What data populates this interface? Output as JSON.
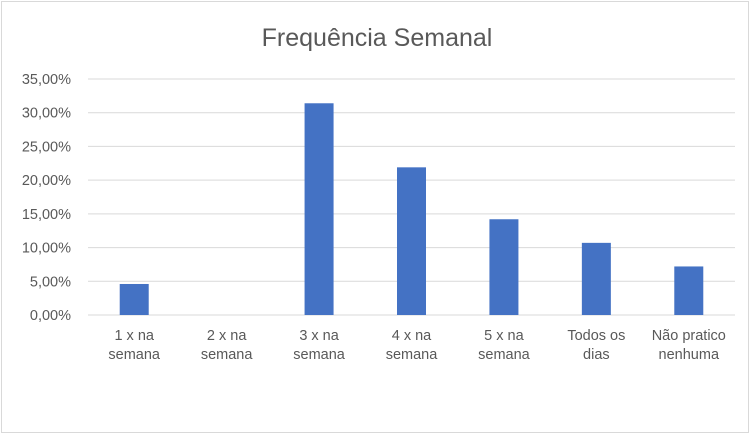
{
  "chart_data": {
    "type": "bar",
    "title": "Frequência Semanal",
    "xlabel": "",
    "ylabel": "",
    "ylim": [
      0,
      35
    ],
    "y_ticks": [
      "0,00%",
      "5,00%",
      "10,00%",
      "15,00%",
      "20,00%",
      "25,00%",
      "30,00%",
      "35,00%"
    ],
    "y_tick_values": [
      0,
      5,
      10,
      15,
      20,
      25,
      30,
      35
    ],
    "grid": true,
    "legend": "none",
    "bar_color": "#4472c4",
    "gridline_color": "#d9d9d9",
    "categories": [
      [
        "1 x na",
        "semana"
      ],
      [
        "2 x na",
        "semana"
      ],
      [
        "3 x na",
        "semana"
      ],
      [
        "4 x na",
        "semana"
      ],
      [
        "5 x na",
        "semana"
      ],
      [
        "Todos os",
        "dias"
      ],
      [
        "Não pratico",
        "nenhuma"
      ]
    ],
    "values": [
      4.6,
      0,
      31.4,
      21.9,
      14.2,
      10.7,
      7.2
    ]
  }
}
